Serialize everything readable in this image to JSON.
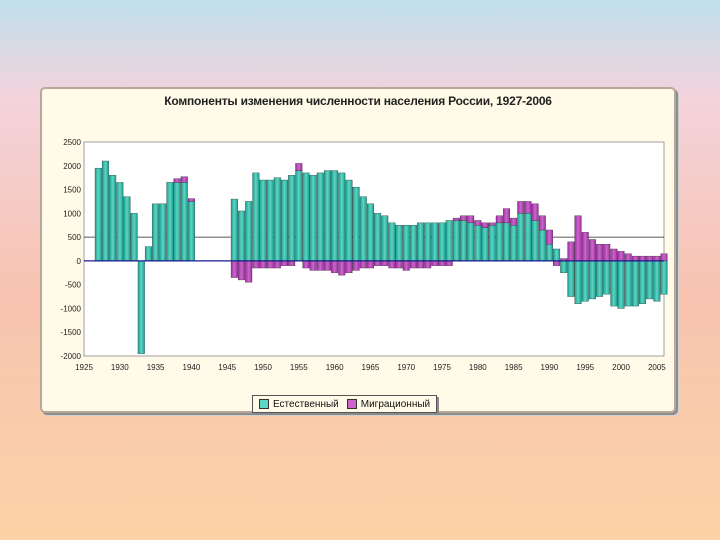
{
  "chart_data": {
    "type": "bar",
    "stacked": true,
    "title": "Компоненты изменения численности населения России, 1927-2006",
    "xlabel": "",
    "ylabel": "",
    "ylim": [
      -2000,
      2500
    ],
    "yticks": [
      2500,
      2000,
      1500,
      1000,
      500,
      0,
      -500,
      -1000,
      -1500,
      -2000
    ],
    "xlim": [
      1925,
      2006
    ],
    "xticks": [
      1925,
      1930,
      1935,
      1940,
      1945,
      1950,
      1955,
      1960,
      1965,
      1970,
      1975,
      1980,
      1985,
      1990,
      1995,
      2000,
      2005
    ],
    "reference_line": 500,
    "x": [
      1927,
      1928,
      1929,
      1930,
      1931,
      1932,
      1933,
      1934,
      1935,
      1936,
      1937,
      1938,
      1939,
      1940,
      1946,
      1947,
      1948,
      1949,
      1950,
      1951,
      1952,
      1953,
      1954,
      1955,
      1956,
      1957,
      1958,
      1959,
      1960,
      1961,
      1962,
      1963,
      1964,
      1965,
      1966,
      1967,
      1968,
      1969,
      1970,
      1971,
      1972,
      1973,
      1974,
      1975,
      1976,
      1977,
      1978,
      1979,
      1980,
      1981,
      1982,
      1983,
      1984,
      1985,
      1986,
      1987,
      1988,
      1989,
      1990,
      1991,
      1992,
      1993,
      1994,
      1995,
      1996,
      1997,
      1998,
      1999,
      2000,
      2001,
      2002,
      2003,
      2004,
      2005,
      2006
    ],
    "series": [
      {
        "name": "Естественный",
        "color": "#5cd6c4",
        "values": [
          1950,
          2100,
          1800,
          1650,
          1350,
          1000,
          -1950,
          300,
          1200,
          1200,
          1650,
          1650,
          1650,
          1250,
          1300,
          1050,
          1250,
          1850,
          1700,
          1700,
          1750,
          1700,
          1800,
          1900,
          1850,
          1800,
          1850,
          1900,
          1900,
          1850,
          1700,
          1550,
          1350,
          1200,
          1000,
          950,
          800,
          750,
          750,
          750,
          800,
          800,
          800,
          800,
          850,
          850,
          850,
          800,
          750,
          700,
          750,
          800,
          800,
          750,
          1000,
          1000,
          850,
          650,
          350,
          250,
          -250,
          -750,
          -900,
          -850,
          -800,
          -750,
          -700,
          -950,
          -1000,
          -950,
          -950,
          -900,
          -800,
          -850,
          -700
        ]
      },
      {
        "name": "Миграционный",
        "color": "#cc66cc",
        "values": [
          0,
          0,
          0,
          0,
          0,
          0,
          0,
          0,
          0,
          0,
          0,
          80,
          120,
          60,
          -350,
          -400,
          -450,
          -150,
          -150,
          -150,
          -150,
          -100,
          -100,
          150,
          -150,
          -200,
          -200,
          -200,
          -250,
          -300,
          -250,
          -200,
          -150,
          -150,
          -100,
          -100,
          -150,
          -150,
          -200,
          -150,
          -150,
          -150,
          -100,
          -100,
          -100,
          50,
          100,
          150,
          100,
          100,
          50,
          150,
          300,
          150,
          250,
          250,
          350,
          300,
          300,
          -100,
          50,
          400,
          950,
          600,
          450,
          350,
          350,
          250,
          200,
          150,
          100,
          100,
          100,
          100,
          150
        ]
      }
    ]
  },
  "legend": {
    "natural": "Естественный",
    "migration": "Миграционный"
  }
}
